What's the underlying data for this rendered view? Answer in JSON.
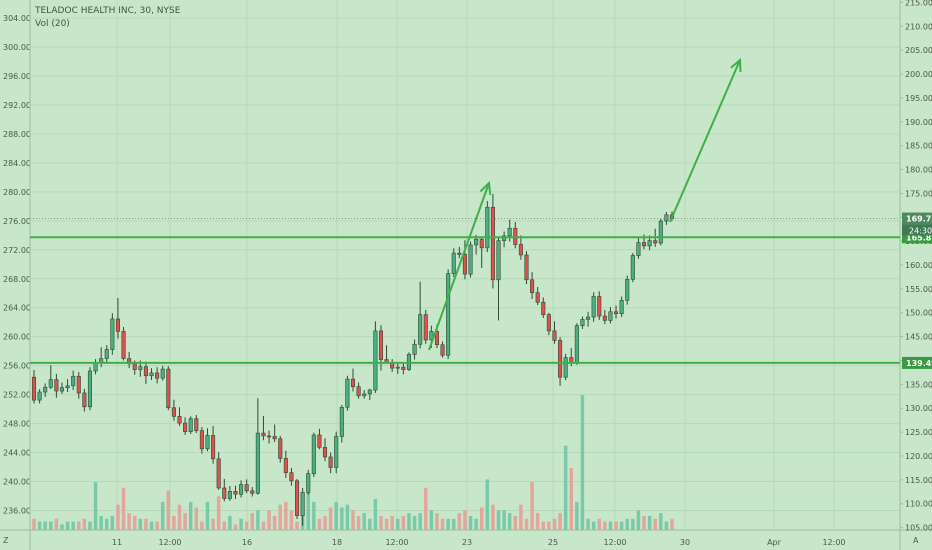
{
  "header": {
    "title": "TELADOC HEALTH INC, 30, NYSE",
    "indicator": "Vol (20)"
  },
  "corners": {
    "bottom_left": "Z",
    "bottom_right": "A"
  },
  "colors": {
    "background": "#c8e6c9",
    "up": "#4caf82",
    "down": "#d9534f",
    "volume_up": "#6bc4a3",
    "volume_down": "#e89a95",
    "lines": "#3db04a",
    "arrows": "#3db04a"
  },
  "chart_data": {
    "type": "candlestick",
    "left_axis": {
      "ticks": [
        "236.00",
        "240.00",
        "244.00",
        "248.00",
        "252.00",
        "256.00",
        "260.00",
        "264.00",
        "268.00",
        "272.00",
        "276.00",
        "280.00",
        "284.00",
        "288.00",
        "292.00",
        "296.00",
        "300.00",
        "304.00"
      ],
      "range": [
        233.3,
        306.5
      ]
    },
    "right_axis": {
      "ticks": [
        "105.00",
        "110.00",
        "115.00",
        "120.00",
        "125.00",
        "130.00",
        "135.00",
        "140.00",
        "145.00",
        "150.00",
        "155.00",
        "160.00",
        "165.00",
        "170.00",
        "175.00",
        "180.00",
        "185.00",
        "190.00",
        "195.00",
        "200.00",
        "205.00",
        "210.00",
        "215.00"
      ],
      "range": [
        104.5,
        215.5
      ]
    },
    "x_ticks": [
      "11",
      "12:00",
      "16",
      "18",
      "12:00",
      "23",
      "25",
      "12:00",
      "30",
      "Apr",
      "12:00"
    ],
    "horizontal_lines": [
      {
        "value": 165.81,
        "label": "165.81"
      },
      {
        "value": 139.49,
        "label": "139.49"
      }
    ],
    "last_price": {
      "value": 169.73,
      "label": "169.73",
      "countdown": "24:30"
    },
    "candles": [
      [
        136.5,
        138.0,
        131.0,
        131.7
      ],
      [
        131.7,
        134.0,
        131.0,
        133.4
      ],
      [
        133.4,
        135.2,
        132.4,
        134.4
      ],
      [
        134.4,
        139.0,
        134.0,
        136.0
      ],
      [
        136.0,
        137.2,
        132.2,
        133.6
      ],
      [
        133.6,
        135.4,
        133.0,
        134.3
      ],
      [
        134.3,
        136.1,
        133.4,
        134.7
      ],
      [
        134.7,
        137.9,
        133.8,
        136.7
      ],
      [
        136.7,
        137.6,
        132.0,
        133.2
      ],
      [
        133.2,
        134.1,
        129.3,
        130.3
      ],
      [
        130.3,
        138.6,
        129.6,
        137.8
      ],
      [
        137.8,
        140.3,
        137.1,
        139.6
      ],
      [
        139.6,
        142.8,
        138.6,
        140.4
      ],
      [
        140.4,
        143.2,
        139.5,
        142.3
      ],
      [
        142.3,
        149.9,
        141.2,
        148.7
      ],
      [
        148.7,
        153.1,
        144.6,
        146.1
      ],
      [
        146.1,
        147.0,
        140.0,
        140.4
      ],
      [
        140.4,
        141.8,
        138.4,
        139.3
      ],
      [
        139.3,
        140.0,
        137.0,
        138.1
      ],
      [
        138.1,
        140.0,
        136.6,
        138.7
      ],
      [
        138.7,
        139.8,
        135.1,
        136.8
      ],
      [
        136.8,
        138.4,
        135.9,
        137.4
      ],
      [
        137.4,
        138.6,
        135.2,
        136.3
      ],
      [
        136.3,
        138.9,
        135.8,
        138.2
      ],
      [
        138.2,
        138.8,
        129.6,
        130.1
      ],
      [
        130.1,
        131.8,
        127.4,
        128.3
      ],
      [
        128.3,
        130.2,
        126.3,
        126.9
      ],
      [
        126.9,
        128.1,
        124.4,
        125.1
      ],
      [
        125.1,
        128.3,
        124.6,
        127.8
      ],
      [
        127.8,
        128.6,
        124.8,
        125.3
      ],
      [
        125.3,
        126.1,
        120.5,
        121.5
      ],
      [
        121.5,
        125.8,
        121.0,
        124.3
      ],
      [
        124.3,
        126.3,
        118.4,
        119.4
      ],
      [
        119.4,
        120.8,
        112.9,
        113.3
      ],
      [
        113.3,
        115.2,
        110.5,
        111.1
      ],
      [
        111.1,
        113.7,
        110.6,
        112.6
      ],
      [
        112.6,
        113.8,
        111.0,
        112.0
      ],
      [
        112.0,
        114.9,
        111.3,
        114.0
      ],
      [
        114.0,
        115.1,
        112.2,
        112.7
      ],
      [
        112.7,
        113.5,
        111.5,
        112.2
      ],
      [
        112.2,
        132.1,
        111.9,
        124.8
      ],
      [
        124.8,
        128.4,
        123.3,
        124.2
      ],
      [
        124.2,
        125.3,
        122.6,
        124.1
      ],
      [
        124.1,
        126.6,
        122.9,
        123.6
      ],
      [
        123.6,
        124.2,
        118.6,
        119.5
      ],
      [
        119.5,
        121.1,
        115.4,
        116.5
      ],
      [
        116.5,
        117.5,
        113.8,
        114.8
      ],
      [
        114.8,
        115.2,
        106.8,
        107.5
      ],
      [
        107.5,
        113.3,
        105.4,
        112.4
      ],
      [
        112.4,
        117.1,
        111.9,
        116.3
      ],
      [
        116.3,
        124.9,
        115.6,
        124.4
      ],
      [
        124.4,
        125.7,
        121.4,
        121.8
      ],
      [
        121.8,
        123.7,
        118.9,
        119.8
      ],
      [
        119.8,
        120.7,
        116.4,
        117.6
      ],
      [
        117.6,
        125.1,
        116.4,
        124.1
      ],
      [
        124.1,
        130.7,
        122.8,
        130.2
      ],
      [
        130.2,
        136.8,
        129.5,
        136.1
      ],
      [
        136.1,
        138.3,
        133.5,
        134.5
      ],
      [
        134.5,
        135.4,
        132.0,
        132.6
      ],
      [
        132.6,
        133.8,
        132.0,
        133.0
      ],
      [
        133.0,
        134.1,
        131.7,
        133.8
      ],
      [
        133.8,
        148.2,
        133.2,
        146.2
      ],
      [
        146.2,
        147.4,
        137.9,
        140.2
      ],
      [
        140.2,
        143.2,
        139.4,
        139.6
      ],
      [
        139.6,
        140.3,
        137.6,
        138.4
      ],
      [
        138.4,
        139.4,
        137.2,
        138.6
      ],
      [
        138.6,
        139.6,
        137.1,
        138.1
      ],
      [
        138.1,
        141.7,
        137.8,
        141.3
      ],
      [
        141.3,
        144.4,
        140.2,
        143.4
      ],
      [
        143.4,
        156.5,
        142.5,
        149.6
      ],
      [
        149.6,
        150.6,
        143.5,
        144.3
      ],
      [
        144.3,
        147.3,
        142.6,
        146.1
      ],
      [
        146.1,
        147.5,
        142.6,
        143.3
      ],
      [
        143.3,
        144.0,
        140.6,
        141.1
      ],
      [
        141.1,
        159.1,
        140.3,
        158.2
      ],
      [
        158.2,
        163.5,
        157.5,
        162.5
      ],
      [
        162.5,
        163.8,
        161.4,
        162.2
      ],
      [
        162.2,
        165.2,
        157.0,
        158.1
      ],
      [
        158.1,
        164.9,
        157.4,
        164.2
      ],
      [
        164.2,
        166.3,
        162.2,
        165.4
      ],
      [
        165.4,
        166.0,
        159.4,
        163.6
      ],
      [
        163.6,
        173.4,
        162.7,
        172.1
      ],
      [
        172.1,
        174.9,
        155.1,
        156.9
      ],
      [
        156.9,
        165.8,
        148.4,
        165.1
      ],
      [
        165.1,
        167.0,
        163.7,
        166.1
      ],
      [
        166.1,
        169.5,
        164.9,
        167.7
      ],
      [
        167.7,
        169.0,
        163.5,
        164.3
      ],
      [
        164.3,
        166.2,
        161.1,
        162.1
      ],
      [
        162.1,
        162.9,
        156.0,
        156.9
      ],
      [
        156.9,
        158.5,
        152.9,
        154.2
      ],
      [
        154.2,
        155.4,
        151.6,
        152.2
      ],
      [
        152.2,
        153.2,
        148.9,
        149.6
      ],
      [
        149.6,
        150.0,
        145.3,
        146.2
      ],
      [
        146.2,
        148.2,
        143.5,
        144.2
      ],
      [
        144.2,
        144.9,
        134.7,
        136.5
      ],
      [
        136.5,
        141.4,
        135.9,
        140.6
      ],
      [
        140.6,
        142.6,
        138.8,
        139.5
      ],
      [
        139.5,
        147.8,
        139.1,
        147.3
      ],
      [
        147.3,
        149.2,
        146.6,
        148.6
      ],
      [
        148.6,
        150.2,
        147.1,
        149.1
      ],
      [
        149.1,
        154.3,
        148.1,
        153.4
      ],
      [
        153.4,
        154.5,
        148.5,
        149.3
      ],
      [
        149.3,
        150.6,
        147.6,
        148.4
      ],
      [
        148.4,
        151.2,
        147.8,
        150.2
      ],
      [
        150.2,
        151.5,
        148.8,
        149.8
      ],
      [
        149.8,
        153.4,
        149.1,
        152.6
      ],
      [
        152.6,
        157.8,
        151.7,
        157.0
      ],
      [
        157.0,
        162.5,
        156.4,
        162.0
      ],
      [
        162.0,
        165.6,
        161.3,
        164.7
      ],
      [
        164.7,
        166.4,
        163.3,
        164.0
      ],
      [
        164.0,
        166.2,
        163.1,
        165.1
      ],
      [
        165.1,
        167.6,
        163.8,
        164.6
      ],
      [
        164.6,
        169.7,
        164.1,
        169.2
      ],
      [
        169.2,
        171.1,
        168.4,
        170.5
      ],
      [
        170.5,
        171.2,
        169.3,
        169.73
      ]
    ],
    "volume": [
      4,
      3,
      3,
      3,
      4,
      2,
      3,
      3,
      3,
      4,
      3,
      17,
      5,
      4,
      5,
      9,
      15,
      6,
      5,
      4,
      4,
      3,
      3,
      10,
      14,
      5,
      9,
      6,
      10,
      8,
      3,
      10,
      4,
      12,
      3,
      5,
      2,
      4,
      3,
      6,
      7,
      3,
      7,
      5,
      9,
      10,
      7,
      3,
      8,
      14,
      10,
      4,
      5,
      8,
      10,
      8,
      9,
      7,
      5,
      6,
      4,
      11,
      5,
      4,
      5,
      4,
      5,
      6,
      5,
      6,
      15,
      7,
      6,
      4,
      4,
      4,
      6,
      7,
      5,
      4,
      8,
      18,
      9,
      7,
      7,
      6,
      5,
      9,
      4,
      17,
      6,
      3,
      3,
      4,
      6,
      30,
      22,
      10,
      48,
      4,
      3,
      4,
      3,
      3,
      3,
      3,
      4,
      4,
      7,
      5,
      5,
      4,
      6,
      3,
      4
    ]
  }
}
